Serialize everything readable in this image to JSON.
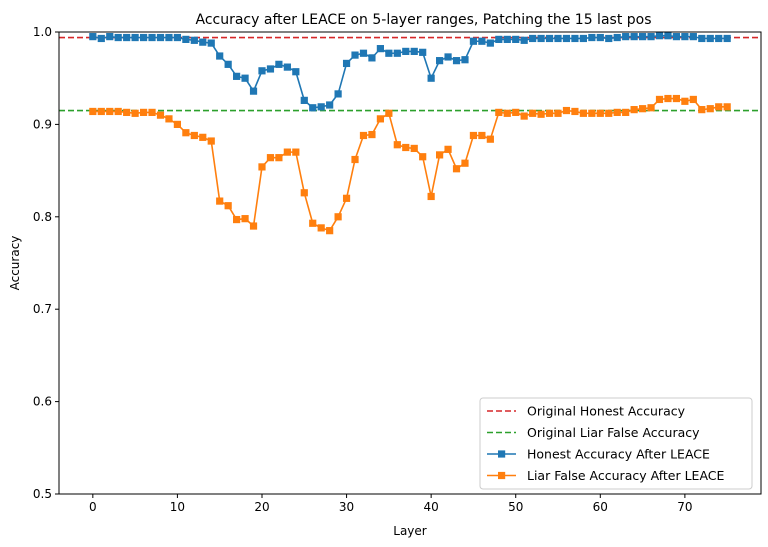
{
  "chart_data": {
    "type": "line",
    "title": "Accuracy after LEACE on 5-layer ranges, Patching the 15 last pos",
    "xlabel": "Layer",
    "ylabel": "Accuracy",
    "xlim": [
      -4,
      79
    ],
    "ylim": [
      0.5,
      1.0
    ],
    "xticks": [
      0,
      10,
      20,
      30,
      40,
      50,
      60,
      70
    ],
    "yticks": [
      0.5,
      0.6,
      0.7,
      0.8,
      0.9,
      1.0
    ],
    "ytick_labels": [
      "0.5",
      "0.6",
      "0.7",
      "0.8",
      "0.9",
      "1.0"
    ],
    "legend_position": "lower-right",
    "reference_lines": [
      {
        "name": "Original Honest Accuracy",
        "y": 0.994,
        "color": "#d62728",
        "style": "dashed"
      },
      {
        "name": "Original Liar False Accuracy",
        "y": 0.915,
        "color": "#2ca02c",
        "style": "dashed"
      }
    ],
    "series": [
      {
        "name": "Honest Accuracy After LEACE",
        "color": "#1f77b4",
        "marker": "square",
        "x": [
          0,
          1,
          2,
          3,
          4,
          5,
          6,
          7,
          8,
          9,
          10,
          11,
          12,
          13,
          14,
          15,
          16,
          17,
          18,
          19,
          20,
          21,
          22,
          23,
          24,
          25,
          26,
          27,
          28,
          29,
          30,
          31,
          32,
          33,
          34,
          35,
          36,
          37,
          38,
          39,
          40,
          41,
          42,
          43,
          44,
          45,
          46,
          47,
          48,
          49,
          50,
          51,
          52,
          53,
          54,
          55,
          56,
          57,
          58,
          59,
          60,
          61,
          62,
          63,
          64,
          65,
          66,
          67,
          68,
          69,
          70,
          71,
          72,
          73,
          74,
          75
        ],
        "values": [
          0.995,
          0.993,
          0.995,
          0.994,
          0.994,
          0.994,
          0.994,
          0.994,
          0.994,
          0.994,
          0.994,
          0.992,
          0.991,
          0.989,
          0.988,
          0.974,
          0.965,
          0.952,
          0.95,
          0.936,
          0.958,
          0.96,
          0.965,
          0.962,
          0.957,
          0.926,
          0.918,
          0.919,
          0.921,
          0.933,
          0.966,
          0.975,
          0.977,
          0.972,
          0.982,
          0.977,
          0.977,
          0.979,
          0.979,
          0.978,
          0.95,
          0.969,
          0.973,
          0.969,
          0.97,
          0.99,
          0.99,
          0.988,
          0.992,
          0.992,
          0.992,
          0.991,
          0.993,
          0.993,
          0.993,
          0.993,
          0.993,
          0.993,
          0.993,
          0.994,
          0.994,
          0.993,
          0.994,
          0.995,
          0.995,
          0.995,
          0.995,
          0.996,
          0.996,
          0.995,
          0.995,
          0.995,
          0.993,
          0.993,
          0.993,
          0.993
        ]
      },
      {
        "name": "Liar False Accuracy After LEACE",
        "color": "#ff7f0e",
        "marker": "square",
        "x": [
          0,
          1,
          2,
          3,
          4,
          5,
          6,
          7,
          8,
          9,
          10,
          11,
          12,
          13,
          14,
          15,
          16,
          17,
          18,
          19,
          20,
          21,
          22,
          23,
          24,
          25,
          26,
          27,
          28,
          29,
          30,
          31,
          32,
          33,
          34,
          35,
          36,
          37,
          38,
          39,
          40,
          41,
          42,
          43,
          44,
          45,
          46,
          47,
          48,
          49,
          50,
          51,
          52,
          53,
          54,
          55,
          56,
          57,
          58,
          59,
          60,
          61,
          62,
          63,
          64,
          65,
          66,
          67,
          68,
          69,
          70,
          71,
          72,
          73,
          74,
          75
        ],
        "values": [
          0.914,
          0.914,
          0.914,
          0.914,
          0.913,
          0.912,
          0.913,
          0.913,
          0.91,
          0.906,
          0.9,
          0.891,
          0.888,
          0.886,
          0.882,
          0.817,
          0.812,
          0.797,
          0.798,
          0.79,
          0.854,
          0.864,
          0.864,
          0.87,
          0.87,
          0.826,
          0.793,
          0.788,
          0.785,
          0.8,
          0.82,
          0.862,
          0.888,
          0.889,
          0.906,
          0.912,
          0.878,
          0.875,
          0.874,
          0.865,
          0.822,
          0.867,
          0.873,
          0.852,
          0.858,
          0.888,
          0.888,
          0.884,
          0.913,
          0.912,
          0.913,
          0.909,
          0.912,
          0.911,
          0.912,
          0.912,
          0.915,
          0.914,
          0.912,
          0.912,
          0.912,
          0.912,
          0.913,
          0.913,
          0.916,
          0.917,
          0.918,
          0.927,
          0.928,
          0.928,
          0.925,
          0.927,
          0.916,
          0.917,
          0.919,
          0.919
        ]
      }
    ]
  }
}
